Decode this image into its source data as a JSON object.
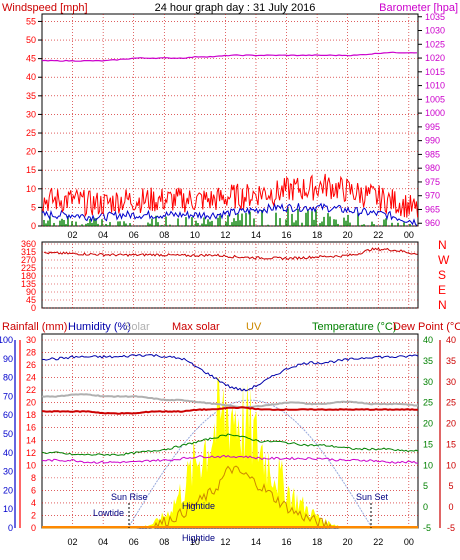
{
  "colors": {
    "wind": "#ff0000",
    "wind_avg": "#0000cc",
    "wind_dir": "#cc0000",
    "gust_bars": "#008000",
    "baro": "#cc00cc",
    "rain": "#0000cc",
    "humidity": "#0000aa",
    "solar": "#b0b0b0",
    "max_solar": "#cc0000",
    "uv": "#cc8800",
    "temperature": "#008000",
    "dew_point": "#cc0000",
    "grid": "#cc0000"
  },
  "chart_data": [
    {
      "type": "line",
      "title": "24 hour graph day : 31 July 2016",
      "left_axis_label": "Windspeed [mph]",
      "right_axis_label": "Barometer [hpa]",
      "left_ticks": [
        "0",
        "5",
        "10",
        "15",
        "20",
        "25",
        "30",
        "35",
        "40",
        "45",
        "50",
        "55"
      ],
      "right_ticks": [
        "960",
        "965",
        "970",
        "975",
        "980",
        "985",
        "990",
        "995",
        "1000",
        "1005",
        "1010",
        "1015",
        "1020",
        "1025",
        "1030",
        "1035"
      ],
      "x_ticks": [
        "02",
        "04",
        "06",
        "08",
        "10",
        "12",
        "14",
        "16",
        "18",
        "20",
        "22",
        "00"
      ],
      "ylim_left": [
        0,
        57
      ],
      "ylim_right": [
        959,
        1036
      ],
      "series": [
        {
          "values": [
            7,
            7,
            7,
            6,
            6,
            7,
            7,
            7,
            7,
            7,
            7,
            7,
            8,
            8,
            9,
            9,
            10,
            10,
            11,
            10,
            9,
            8,
            7,
            6,
            4
          ]
        },
        {
          "values": [
            3,
            3,
            3,
            2.5,
            2.5,
            3,
            3,
            3,
            3,
            3,
            3,
            3,
            3.5,
            4,
            4.5,
            5,
            5,
            5,
            5,
            4.5,
            4,
            3.5,
            3,
            2,
            1
          ]
        },
        {
          "values": [
            1019,
            1019,
            1019,
            1019,
            1019,
            1019.5,
            1020,
            1020,
            1020,
            1020,
            1020.5,
            1020.5,
            1021,
            1021,
            1021,
            1021,
            1021,
            1021,
            1021,
            1021,
            1021,
            1021.5,
            1022,
            1022,
            1022
          ]
        }
      ]
    },
    {
      "type": "line",
      "left_ticks": [
        "0",
        "45",
        "90",
        "135",
        "180",
        "225",
        "270",
        "315",
        "360"
      ],
      "right_labels": [
        "N",
        "W",
        "S",
        "E",
        "N"
      ],
      "ylim": [
        0,
        360
      ],
      "series": [
        {
          "values": [
            310,
            308,
            305,
            303,
            300,
            298,
            298,
            300,
            298,
            295,
            296,
            298,
            290,
            285,
            282,
            280,
            280,
            285,
            290,
            292,
            300,
            330,
            330,
            320,
            300
          ]
        }
      ]
    },
    {
      "type": "line",
      "legend": [
        "Rainfall (mm)",
        "Humidity (%)",
        "Solar",
        "Max solar",
        "UV",
        "Temperature (°C)",
        "Dew Point (°C)"
      ],
      "left_axis_ticks": [
        "0",
        "10",
        "20",
        "30",
        "40",
        "50",
        "60",
        "70",
        "80",
        "90",
        "100"
      ],
      "rain_axis_ticks": [
        "0",
        "2",
        "4",
        "6",
        "8",
        "10",
        "12",
        "14",
        "16",
        "18",
        "20",
        "22",
        "24",
        "26",
        "28",
        "30"
      ],
      "right_axis_ticks": [
        "-5",
        "0",
        "5",
        "10",
        "15",
        "20",
        "25",
        "30",
        "35",
        "40"
      ],
      "x_ticks": [
        "02",
        "04",
        "06",
        "08",
        "10",
        "12",
        "14",
        "16",
        "18",
        "20",
        "22",
        "00"
      ],
      "annotations": [
        "Lowtide",
        "Sun Rise",
        "Hightide",
        "Hightide",
        "Sun Set"
      ],
      "series": [
        {
          "values": [
            90,
            90,
            91,
            91,
            91,
            91,
            92,
            92,
            91,
            90,
            85,
            80,
            75,
            73,
            77,
            82,
            86,
            88,
            88,
            89,
            90,
            91,
            91,
            91,
            92
          ]
        },
        {
          "values": [
            70,
            70,
            71,
            71,
            70,
            70,
            70,
            69,
            68,
            68,
            67,
            66,
            65,
            64,
            65,
            66,
            67,
            66,
            66,
            67,
            67,
            66,
            66,
            66,
            65
          ]
        },
        {
          "values": [
            62,
            62,
            62,
            62,
            61,
            61,
            61,
            62,
            62,
            62,
            63,
            63,
            64,
            64,
            63,
            63,
            63,
            63,
            63,
            63,
            63,
            63,
            63,
            63,
            63
          ]
        },
        {
          "values": [
            40,
            40,
            39,
            39,
            39,
            39,
            40,
            41,
            42,
            44,
            46,
            48,
            50,
            48,
            46,
            46,
            45,
            44,
            44,
            43,
            42,
            42,
            42,
            41,
            41
          ]
        },
        {
          "values": [
            36,
            36,
            36,
            35,
            35,
            35,
            35,
            36,
            36,
            37,
            38,
            38,
            38,
            38,
            37,
            37,
            37,
            37,
            37,
            36,
            36,
            36,
            35,
            35,
            35
          ]
        },
        {
          "values": [
            0,
            0,
            0,
            0,
            0,
            0,
            0,
            2,
            8,
            22,
            40,
            55,
            68,
            58,
            44,
            30,
            18,
            10,
            4,
            1,
            0,
            0,
            0,
            0,
            0
          ]
        },
        {
          "values": [
            0,
            0,
            0,
            0,
            0,
            0,
            0,
            1,
            4,
            8,
            14,
            20,
            32,
            28,
            22,
            15,
            9,
            5,
            2,
            0,
            0,
            0,
            0,
            0,
            0
          ]
        }
      ]
    }
  ]
}
